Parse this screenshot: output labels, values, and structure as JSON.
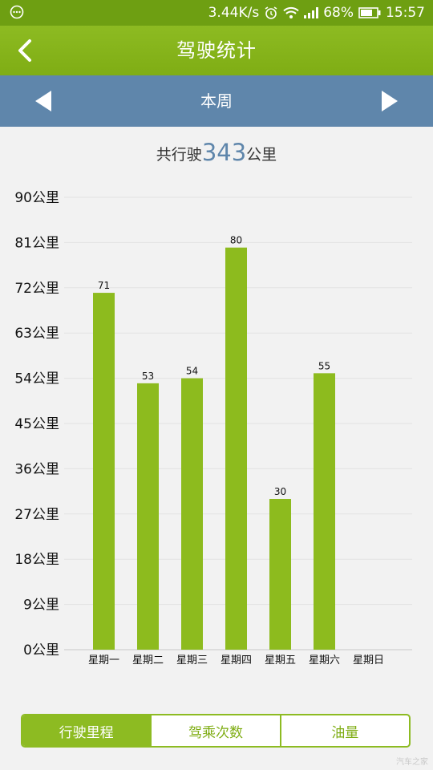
{
  "status_bar": {
    "speed": "3.44K/s",
    "battery": "68%",
    "time": "15:57",
    "icons": [
      "menu-dots-icon",
      "alarm-icon",
      "wifi-icon",
      "signal-icon",
      "battery-icon"
    ]
  },
  "header": {
    "title": "驾驶统计",
    "back_icon": "chevron-left-icon"
  },
  "week_nav": {
    "label": "本周",
    "prev_icon": "triangle-left-icon",
    "next_icon": "triangle-right-icon"
  },
  "summary": {
    "prefix": "共行驶",
    "total": "343",
    "unit": "公里"
  },
  "colors": {
    "accent": "#8dbb22",
    "bar": "#8dbb1e",
    "nav": "#5f86ab",
    "status": "#6e9f12"
  },
  "chart_data": {
    "type": "bar",
    "categories": [
      "星期一",
      "星期二",
      "星期三",
      "星期四",
      "星期五",
      "星期六",
      "星期日"
    ],
    "values": [
      71,
      53,
      54,
      80,
      30,
      55,
      null
    ],
    "value_labels": [
      "71",
      "53",
      "54",
      "80",
      "30",
      "55",
      ""
    ],
    "y_ticks": [
      "0公里",
      "9公里",
      "18公里",
      "27公里",
      "36公里",
      "45公里",
      "54公里",
      "63公里",
      "72公里",
      "81公里",
      "90公里"
    ],
    "ylim": [
      0,
      90
    ],
    "grid": true
  },
  "tabs": [
    {
      "label": "行驶里程",
      "active": true
    },
    {
      "label": "驾乘次数",
      "active": false
    },
    {
      "label": "油量",
      "active": false
    }
  ],
  "watermark": "汽车之家"
}
